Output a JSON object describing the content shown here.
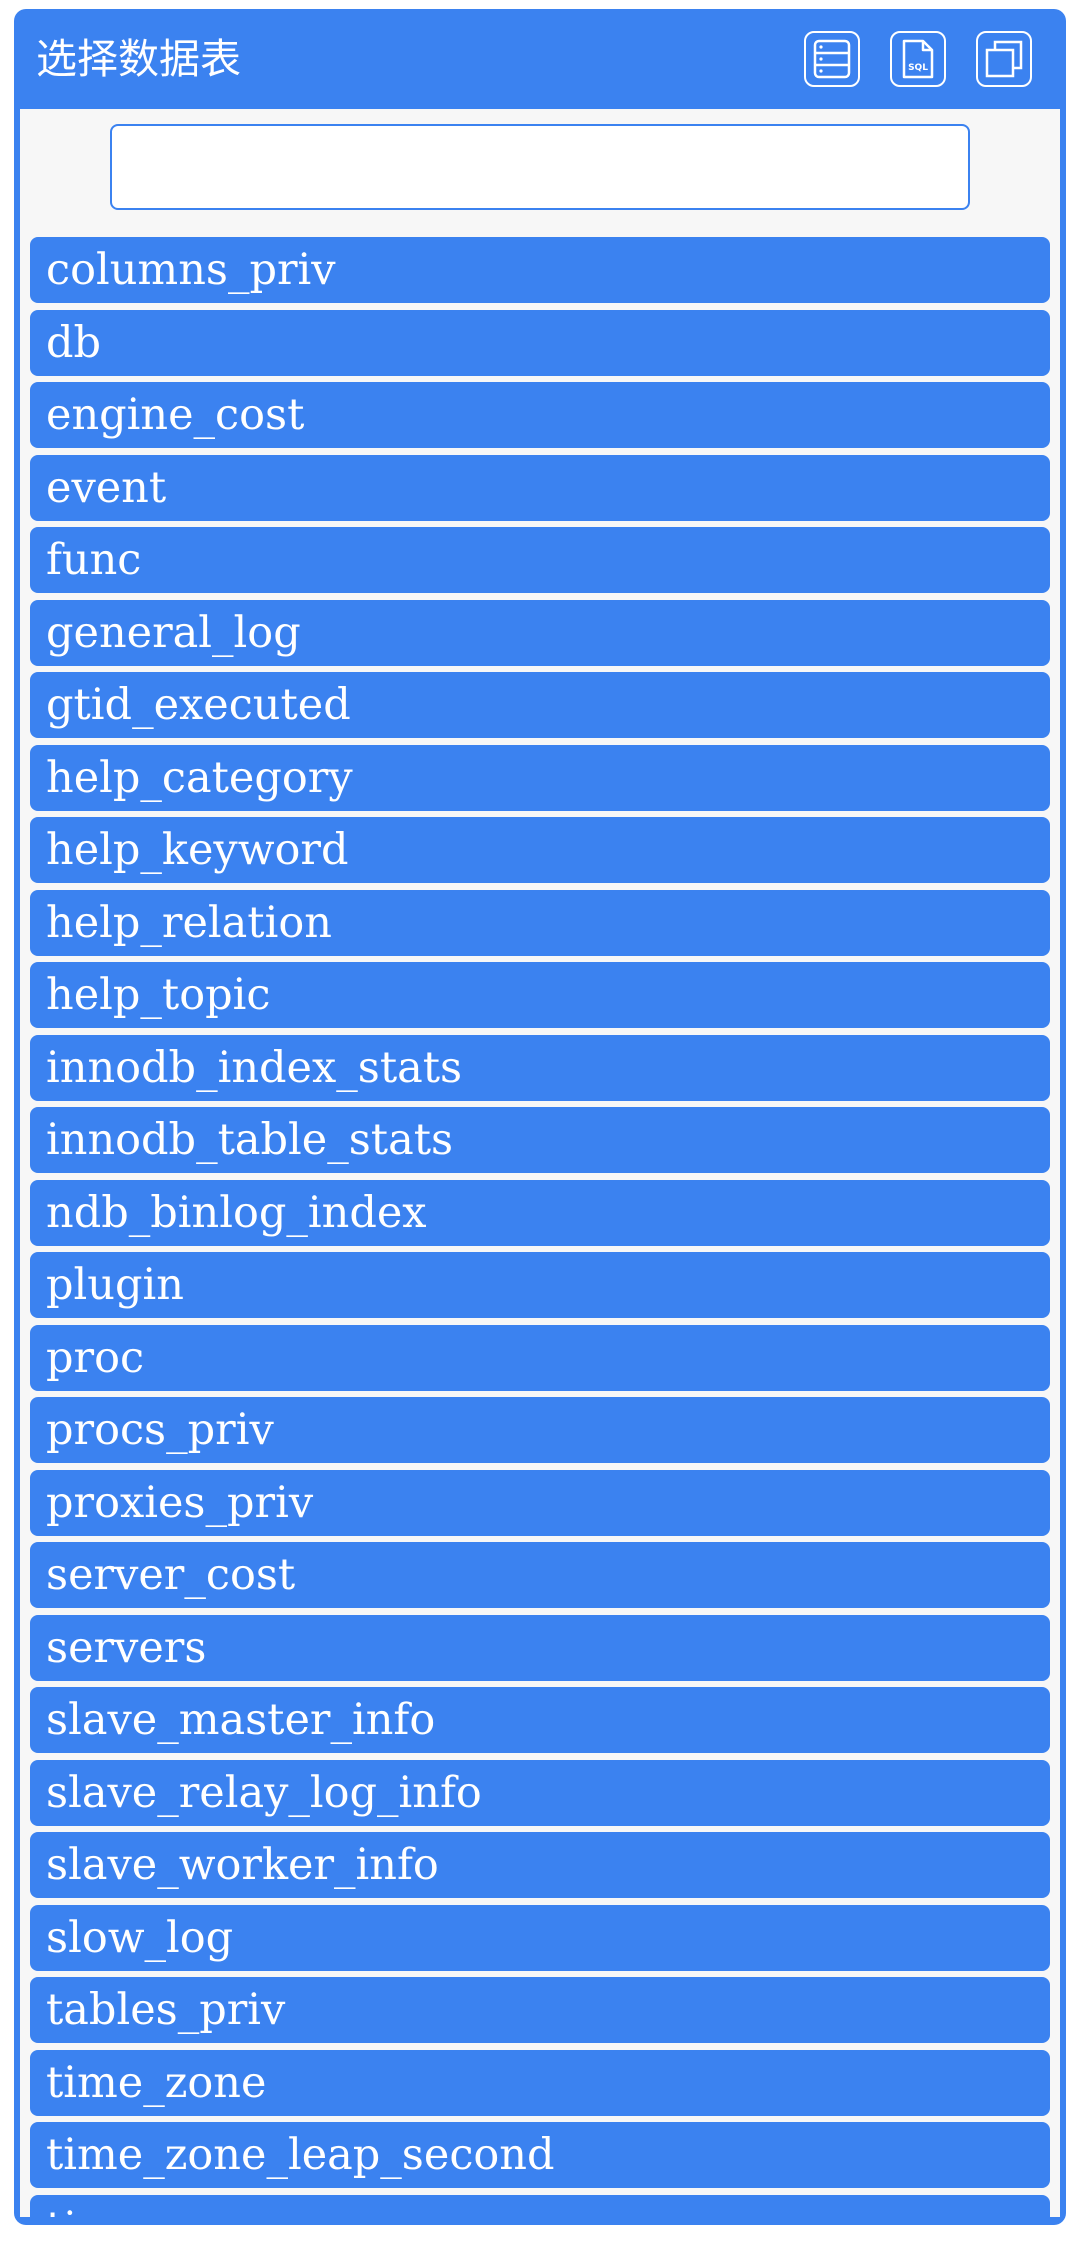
{
  "header": {
    "title": "选择数据表",
    "buttons": [
      {
        "icon": "table-list-icon"
      },
      {
        "icon": "sql-file-icon"
      },
      {
        "icon": "copy-window-icon"
      }
    ],
    "sql_icon_text": "SQL"
  },
  "search": {
    "value": "",
    "placeholder": ""
  },
  "tables": [
    "columns_priv",
    "db",
    "engine_cost",
    "event",
    "func",
    "general_log",
    "gtid_executed",
    "help_category",
    "help_keyword",
    "help_relation",
    "help_topic",
    "innodb_index_stats",
    "innodb_table_stats",
    "ndb_binlog_index",
    "plugin",
    "proc",
    "procs_priv",
    "proxies_priv",
    "server_cost",
    "servers",
    "slave_master_info",
    "slave_relay_log_info",
    "slave_worker_info",
    "slow_log",
    "tables_priv",
    "time_zone",
    "time_zone_leap_second",
    "time_zone_name"
  ],
  "colors": {
    "accent": "#3b82f0",
    "panel_bg": "#f7f7f7",
    "text_on_accent": "#ffffff"
  }
}
